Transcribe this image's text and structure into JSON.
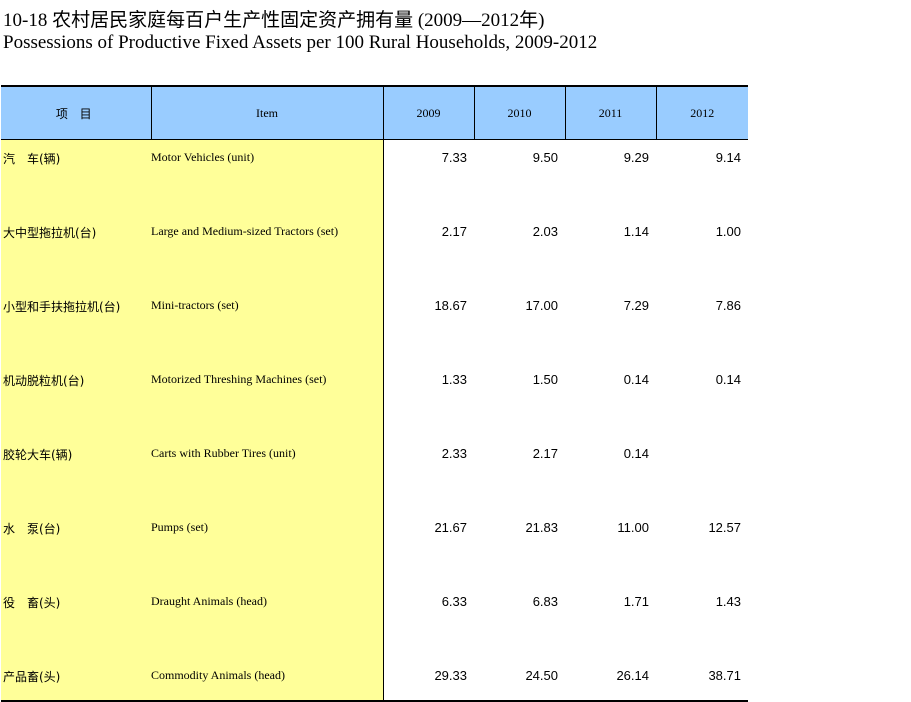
{
  "title": {
    "chinese": "10-18  农村居民家庭每百户生产性固定资产拥有量 (2009—2012年)",
    "english": "Possessions of Productive Fixed Assets per 100 Rural Households, 2009-2012"
  },
  "table": {
    "headers": [
      "项 目",
      "Item",
      "2009",
      "2010",
      "2011",
      "2012"
    ],
    "rows": [
      {
        "cn": "汽　车(辆)",
        "en": "Motor Vehicles (unit)",
        "v2009": "7.33",
        "v2010": "9.50",
        "v2011": "9.29",
        "v2012": "9.14"
      },
      {
        "cn": "大中型拖拉机(台)",
        "en": "Large and Medium-sized Tractors (set)",
        "v2009": "2.17",
        "v2010": "2.03",
        "v2011": "1.14",
        "v2012": "1.00"
      },
      {
        "cn": "小型和手扶拖拉机(台)",
        "en": "Mini-tractors (set)",
        "v2009": "18.67",
        "v2010": "17.00",
        "v2011": "7.29",
        "v2012": "7.86"
      },
      {
        "cn": "机动脱粒机(台)",
        "en": "Motorized Threshing Machines (set)",
        "v2009": "1.33",
        "v2010": "1.50",
        "v2011": "0.14",
        "v2012": "0.14"
      },
      {
        "cn": "胶轮大车(辆)",
        "en": "Carts with Rubber Tires (unit)",
        "v2009": "2.33",
        "v2010": "2.17",
        "v2011": "0.14",
        "v2012": ""
      },
      {
        "cn": "水　泵(台)",
        "en": "Pumps (set)",
        "v2009": "21.67",
        "v2010": "21.83",
        "v2011": "11.00",
        "v2012": "12.57"
      },
      {
        "cn": "役　畜(头)",
        "en": "Draught Animals (head)",
        "v2009": "6.33",
        "v2010": "6.83",
        "v2011": "1.71",
        "v2012": "1.43"
      },
      {
        "cn": "产品畜(头)",
        "en": "Commodity Animals (head)",
        "v2009": "29.33",
        "v2010": "24.50",
        "v2011": "26.14",
        "v2012": "38.71"
      }
    ]
  },
  "colors": {
    "header_bg": "#99ccff",
    "item_bg": "#ffff99"
  }
}
